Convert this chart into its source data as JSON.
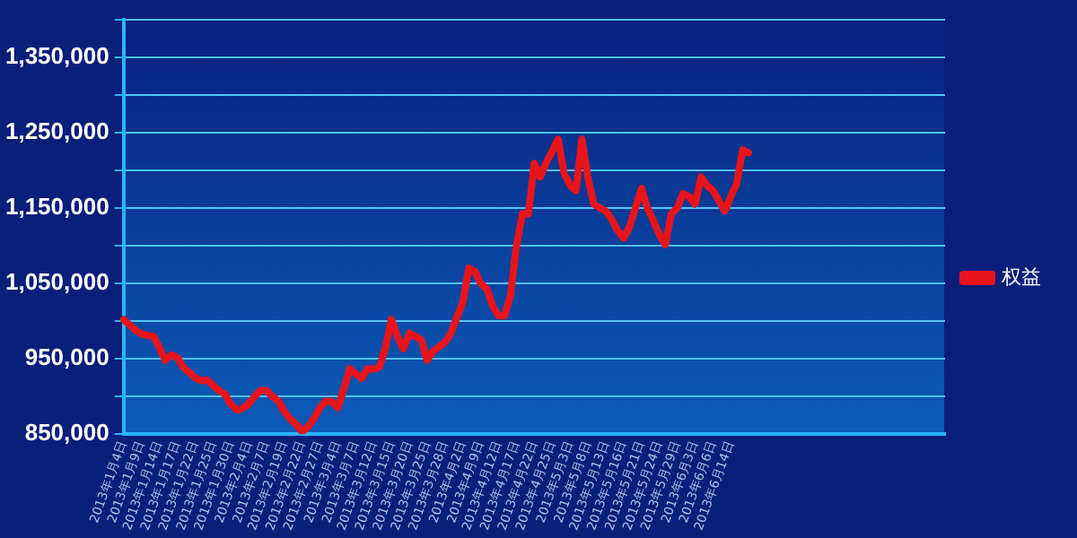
{
  "chart_data": {
    "type": "line",
    "categories": [
      "2013年1月4日",
      null,
      null,
      "2013年1月9日",
      null,
      null,
      "2013年1月14日",
      null,
      null,
      "2013年1月17日",
      null,
      null,
      "2013年1月22日",
      null,
      null,
      "2013年1月25日",
      null,
      null,
      "2013年1月30日",
      null,
      null,
      "2013年2月4日",
      null,
      null,
      "2013年2月7日",
      null,
      null,
      "2013年2月19日",
      null,
      null,
      "2013年2月22日",
      null,
      null,
      "2013年2月27日",
      null,
      null,
      "2013年3月4日",
      null,
      null,
      "2013年3月7日",
      null,
      null,
      "2013年3月12日",
      null,
      null,
      "2013年3月15日",
      null,
      null,
      "2013年3月20日",
      null,
      null,
      "2013年3月25日",
      null,
      null,
      "2013年3月28日",
      null,
      null,
      "2013年4月2日",
      null,
      null,
      "2013年4月9日",
      null,
      null,
      "2013年4月12日",
      null,
      null,
      "2013年4月17日",
      null,
      null,
      "2013年4月22日",
      null,
      null,
      "2013年4月25日",
      null,
      null,
      "2013年5月3日",
      null,
      null,
      "2013年5月8日",
      null,
      null,
      "2013年5月13日",
      null,
      null,
      "2013年5月16日",
      null,
      null,
      "2013年5月21日",
      null,
      null,
      "2013年5月24日",
      null,
      null,
      "2013年5月29日",
      null,
      null,
      "2013年6月3日",
      null,
      null,
      "2013年6月6日",
      null,
      null,
      "2013年6月14日",
      null,
      null,
      null,
      null,
      null,
      null,
      null,
      null,
      null,
      null,
      null,
      null,
      null,
      null,
      null,
      null,
      null,
      null,
      null,
      null,
      null,
      null,
      null,
      null,
      null,
      null,
      null,
      null,
      null,
      null,
      null,
      null,
      null,
      null,
      null,
      null
    ],
    "series": [
      {
        "name": "权益",
        "color": "#e8141c",
        "values": [
          1002000,
          995000,
          988000,
          983000,
          981000,
          980000,
          965000,
          948000,
          955000,
          952000,
          939000,
          932000,
          925000,
          921000,
          922000,
          915000,
          908000,
          903000,
          890000,
          882000,
          884000,
          890000,
          900000,
          908000,
          908000,
          900000,
          894000,
          880000,
          870000,
          863000,
          853000,
          860000,
          871000,
          885000,
          894000,
          893000,
          885000,
          910000,
          937000,
          930000,
          924000,
          937000,
          936000,
          939000,
          965000,
          1002000,
          980000,
          963000,
          984000,
          980000,
          975000,
          948000,
          960000,
          966000,
          972000,
          984000,
          1005000,
          1025000,
          1070000,
          1066000,
          1050000,
          1043000,
          1020000,
          1007000,
          1007000,
          1034000,
          1100000,
          1142000,
          1142000,
          1209000,
          1191000,
          1210000,
          1225000,
          1241000,
          1196000,
          1180000,
          1173000,
          1241000,
          1190000,
          1155000,
          1150000,
          1146000,
          1135000,
          1120000,
          1110000,
          1125000,
          1150000,
          1176000,
          1150000,
          1133000,
          1115000,
          1101000,
          1142000,
          1150000,
          1169000,
          1165000,
          1155000,
          1191000,
          1180000,
          1173000,
          1160000,
          1146000,
          1165000,
          1182000,
          1227000,
          1223000,
          null,
          null,
          null,
          null,
          null,
          null,
          null,
          null,
          null,
          null,
          null,
          null,
          null,
          null,
          null,
          null,
          null,
          null,
          null,
          null,
          null,
          null,
          null,
          null,
          null,
          null,
          null,
          null,
          null,
          null,
          null,
          null,
          null
        ]
      }
    ],
    "ylim": [
      850000,
      1400000
    ],
    "yticks": [
      {
        "value": 850000,
        "label": "850,000"
      },
      {
        "value": 900000,
        "label": null
      },
      {
        "value": 950000,
        "label": "950,000"
      },
      {
        "value": 1000000,
        "label": null
      },
      {
        "value": 1050000,
        "label": "1,050,000"
      },
      {
        "value": 1100000,
        "label": null
      },
      {
        "value": 1150000,
        "label": "1,150,000"
      },
      {
        "value": 1200000,
        "label": null
      },
      {
        "value": 1250000,
        "label": "1,250,000"
      },
      {
        "value": 1300000,
        "label": null
      },
      {
        "value": 1350000,
        "label": "1,350,000"
      },
      {
        "value": 1400000,
        "label": null
      }
    ],
    "grid": "y",
    "legend": "right",
    "marker": "none",
    "line_style": "solid"
  }
}
